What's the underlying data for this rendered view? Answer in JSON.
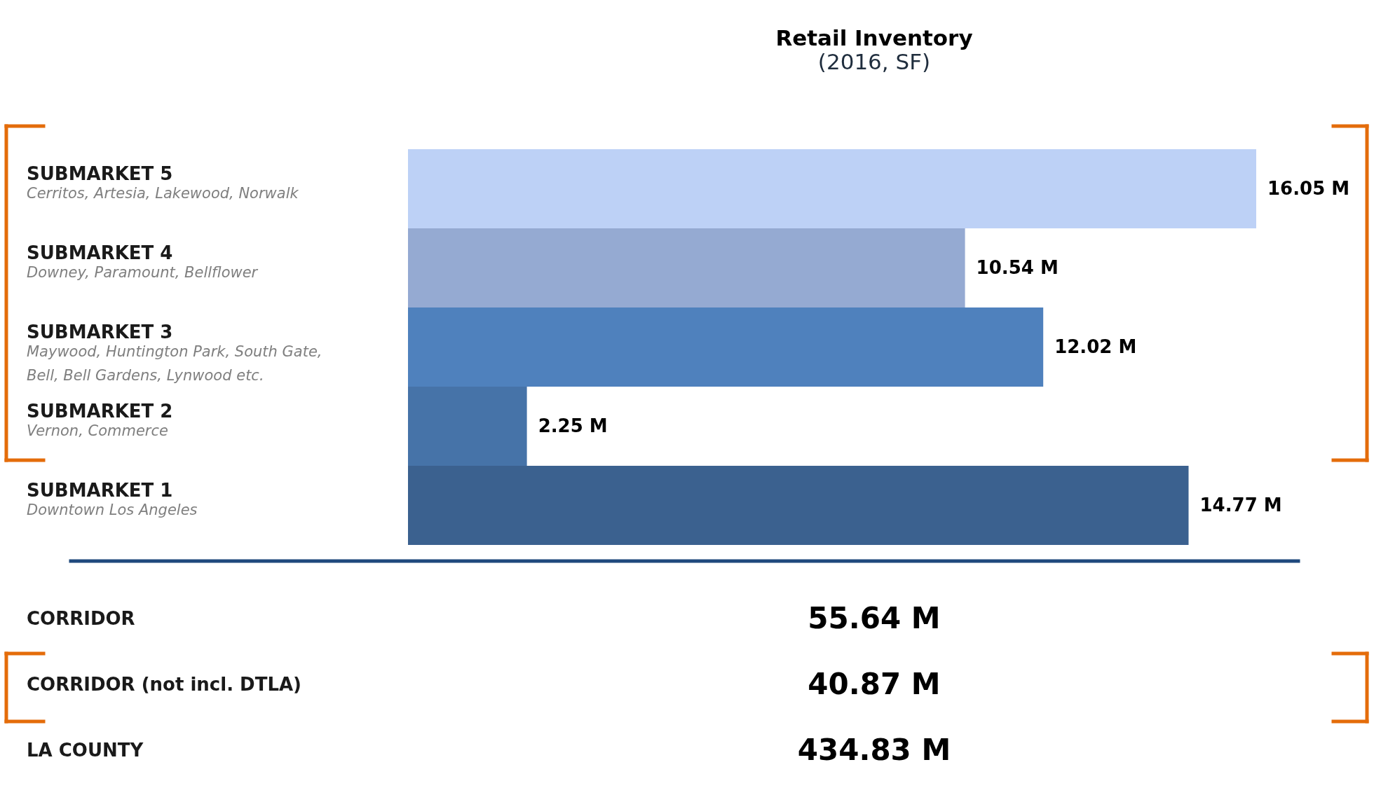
{
  "chart_data": [
    {
      "type": "bar",
      "orientation": "horizontal",
      "title": "Retail Inventory",
      "subtitle": "(2016, SF)",
      "categories": [
        "SUBMARKET 5",
        "SUBMARKET 4",
        "SUBMARKET 3",
        "SUBMARKET 2",
        "SUBMARKET 1"
      ],
      "values": [
        16.05,
        10.54,
        12.02,
        2.25,
        14.77
      ],
      "colors": [
        "#bdd1f6",
        "#95aad2",
        "#4f81bd",
        "#4673a8",
        "#3b618f"
      ],
      "value_labels": [
        "16.05 M",
        "10.54 M",
        "12.02 M",
        "2.25 M",
        "14.77 M"
      ],
      "annotations": [
        "Cerritos, Artesia, Lakewood, Norwalk",
        "Downey, Paramount, Bellflower",
        "Maywood, Huntington Park, South Gate,\nBell, Bell Gardens, Lynwood etc.",
        "Vernon, Commerce",
        "Downtown Los Angeles"
      ]
    },
    {
      "type": "other",
      "categories": [
        "CORRIDOR",
        "CORRIDOR (not incl. DTLA)",
        "LA COUNTY"
      ],
      "values": [
        55.64,
        40.87,
        434.83
      ],
      "value_labels": [
        "55.64 M",
        "40.87 M",
        "434.83 M"
      ]
    }
  ]
}
